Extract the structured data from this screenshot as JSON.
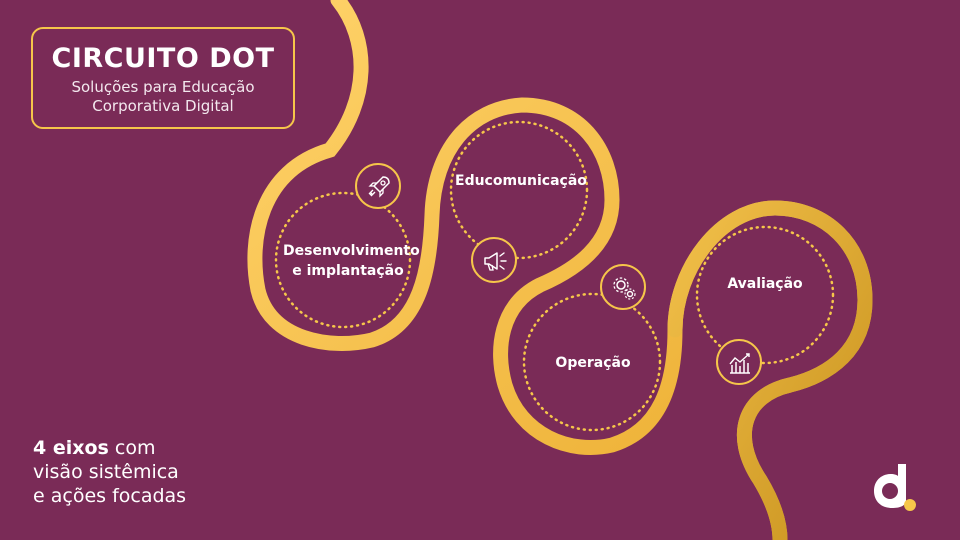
{
  "header": {
    "title": "CIRCUITO DOT",
    "subtitle_line1": "Soluções para Educação",
    "subtitle_line2": "Corporativa Digital"
  },
  "stages": [
    {
      "label_line1": "Desenvolvimento",
      "label_line2": "e implantação",
      "icon": "rocket-icon"
    },
    {
      "label_line1": "Educomunicação",
      "label_line2": "",
      "icon": "megaphone-icon"
    },
    {
      "label_line1": "Operação",
      "label_line2": "",
      "icon": "gears-icon"
    },
    {
      "label_line1": "Avaliação",
      "label_line2": "",
      "icon": "chart-icon"
    }
  ],
  "tagline": {
    "bold": "4 eixos",
    "rest1": " com",
    "line2": "visão sistêmica",
    "line3": "e ações focadas"
  },
  "colors": {
    "background": "#7a2b57",
    "accent": "#f6c64a",
    "track_dark": "#d9a22a",
    "logo_dot": "#f6c64a"
  },
  "logo": {
    "icon": "d-logo-icon"
  }
}
